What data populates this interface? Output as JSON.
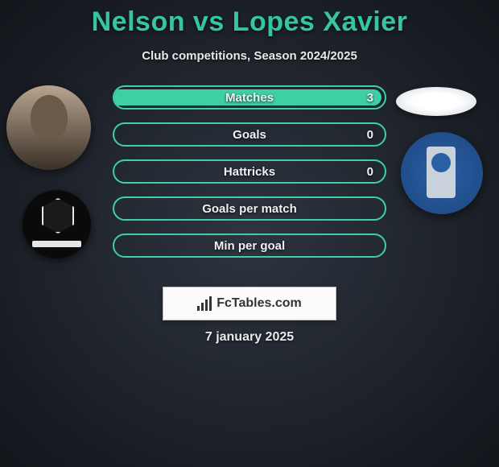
{
  "title": "Nelson vs Lopes Xavier",
  "subtitle": "Club competitions, Season 2024/2025",
  "date_line": "7 january 2025",
  "brand": {
    "text": "FcTables.com"
  },
  "colors": {
    "accent": "#35c69e",
    "bar_border": "#3fcfa5",
    "left_seg": "#5e6670",
    "right_seg": "#3fcfa5",
    "text": "#f0f0f0"
  },
  "left": {
    "player_name": "Nelson",
    "avatar_desc": "bearded-player-photo",
    "club_badge_desc": "black-shield-crest"
  },
  "right": {
    "player_name": "Lopes Xavier",
    "avatar_desc": "white-oval-placeholder",
    "club_badge_desc": "blue-circular-crest"
  },
  "bars": [
    {
      "label": "Matches",
      "left_val": "",
      "right_val": "3",
      "left_pct": 0,
      "right_pct": 100
    },
    {
      "label": "Goals",
      "left_val": "",
      "right_val": "0",
      "left_pct": 0,
      "right_pct": 0
    },
    {
      "label": "Hattricks",
      "left_val": "",
      "right_val": "0",
      "left_pct": 0,
      "right_pct": 0
    },
    {
      "label": "Goals per match",
      "left_val": "",
      "right_val": "",
      "left_pct": 0,
      "right_pct": 0
    },
    {
      "label": "Min per goal",
      "left_val": "",
      "right_val": "",
      "left_pct": 0,
      "right_pct": 0
    }
  ]
}
